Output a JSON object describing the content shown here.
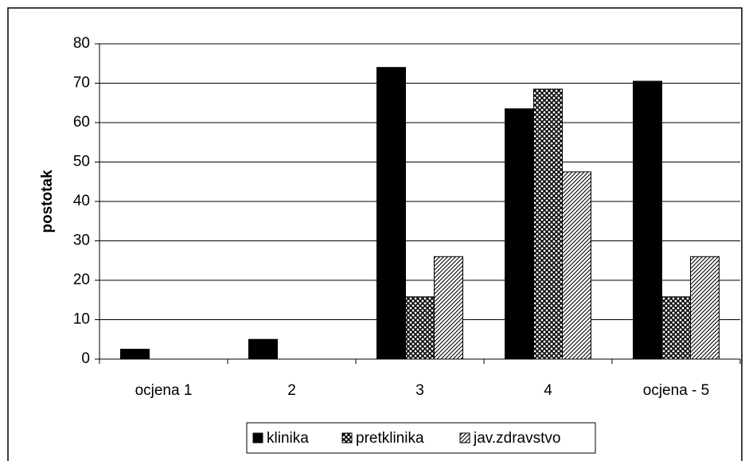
{
  "chart_data": {
    "type": "bar",
    "y_label": "postotak",
    "categories": [
      "ocjena 1",
      "2",
      "3",
      "4",
      "ocjena - 5"
    ],
    "series": [
      {
        "name": "klinika",
        "color": "#000000",
        "pattern": "solid",
        "values": [
          2.5,
          5,
          74,
          63.5,
          70.5
        ]
      },
      {
        "name": "pretklinika",
        "color": "#000000",
        "pattern": "crosshatch",
        "values": [
          0,
          0,
          15.8,
          68.5,
          15.8
        ]
      },
      {
        "name": "jav.zdravstvo",
        "color": "#000000",
        "pattern": "diagonal",
        "values": [
          0,
          0,
          26,
          47.5,
          26
        ]
      }
    ],
    "ylim": [
      0,
      80
    ],
    "yticks": [
      0,
      10,
      20,
      30,
      40,
      50,
      60,
      70,
      80
    ],
    "grid": true,
    "legend": "bottom"
  }
}
